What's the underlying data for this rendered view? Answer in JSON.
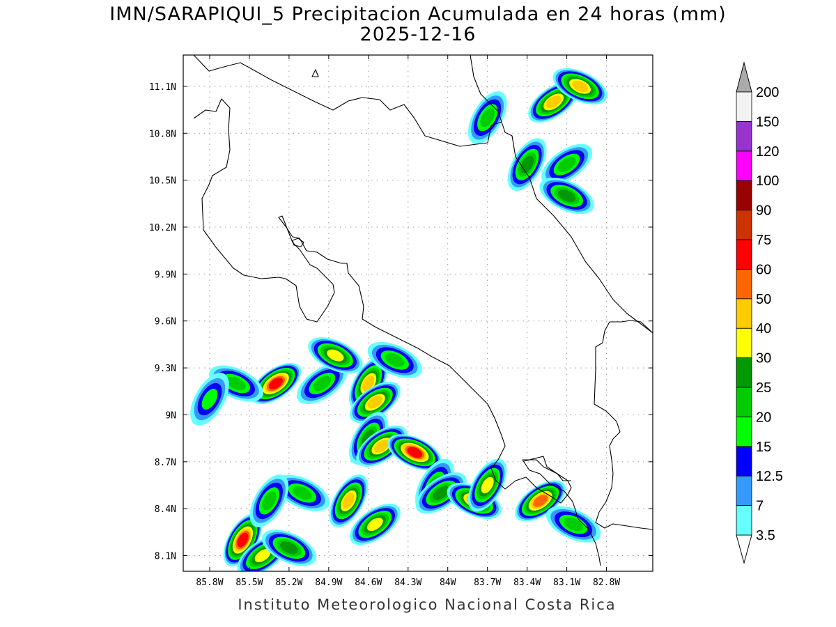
{
  "title": "IMN/SARAPIQUI_5 Precipitacion Acumulada en 24 horas (mm)",
  "date": "2025-12-16",
  "credit": "Instituto Meteorologico Nacional Costa Rica",
  "map": {
    "lon_range": [
      -86.0,
      -82.45
    ],
    "lat_range": [
      8.0,
      11.3
    ],
    "lon_ticks": [
      {
        "value": -85.8,
        "label": "85.8W"
      },
      {
        "value": -85.5,
        "label": "85.5W"
      },
      {
        "value": -85.2,
        "label": "85.2W"
      },
      {
        "value": -84.9,
        "label": "84.9W"
      },
      {
        "value": -84.6,
        "label": "84.6W"
      },
      {
        "value": -84.3,
        "label": "84.3W"
      },
      {
        "value": -84.0,
        "label": "84W"
      },
      {
        "value": -83.7,
        "label": "83.7W"
      },
      {
        "value": -83.4,
        "label": "83.4W"
      },
      {
        "value": -83.1,
        "label": "83.1W"
      },
      {
        "value": -82.8,
        "label": "82.8W"
      }
    ],
    "lat_ticks": [
      {
        "value": 8.1,
        "label": "8.1N"
      },
      {
        "value": 8.4,
        "label": "8.4N"
      },
      {
        "value": 8.7,
        "label": "8.7N"
      },
      {
        "value": 9.0,
        "label": "9N"
      },
      {
        "value": 9.3,
        "label": "9.3N"
      },
      {
        "value": 9.6,
        "label": "9.6N"
      },
      {
        "value": 9.9,
        "label": "9.9N"
      },
      {
        "value": 10.2,
        "label": "10.2N"
      },
      {
        "value": 10.5,
        "label": "10.5N"
      },
      {
        "value": 10.8,
        "label": "10.8N"
      },
      {
        "value": 11.1,
        "label": "11.1N"
      }
    ],
    "grid": true
  },
  "colorbar": {
    "levels": [
      {
        "label": "3.5",
        "color": "#66ffff"
      },
      {
        "label": "7",
        "color": "#3399ff"
      },
      {
        "label": "12.5",
        "color": "#0000ff"
      },
      {
        "label": "15",
        "color": "#00ff00"
      },
      {
        "label": "20",
        "color": "#00cc00"
      },
      {
        "label": "25",
        "color": "#009900"
      },
      {
        "label": "30",
        "color": "#ffff00"
      },
      {
        "label": "40",
        "color": "#ffcc00"
      },
      {
        "label": "50",
        "color": "#ff6600"
      },
      {
        "label": "60",
        "color": "#ff0000"
      },
      {
        "label": "75",
        "color": "#cc3300"
      },
      {
        "label": "90",
        "color": "#990000"
      },
      {
        "label": "100",
        "color": "#ff00ff"
      },
      {
        "label": "120",
        "color": "#9933cc"
      },
      {
        "label": "150",
        "color": "#f2f2f2"
      },
      {
        "label": "200",
        "color": "#aaaaaa"
      }
    ],
    "under_color": "#ffffff",
    "over_color": "#aaaaaa"
  },
  "rain_cells": [
    {
      "lon": -83.2,
      "lat": 11.0,
      "max_mm": 40
    },
    {
      "lon": -83.0,
      "lat": 11.1,
      "max_mm": 40
    },
    {
      "lon": -83.4,
      "lat": 10.6,
      "max_mm": 25
    },
    {
      "lon": -83.1,
      "lat": 10.6,
      "max_mm": 20
    },
    {
      "lon": -83.1,
      "lat": 10.4,
      "max_mm": 25
    },
    {
      "lon": -83.7,
      "lat": 10.9,
      "max_mm": 20
    },
    {
      "lon": -85.3,
      "lat": 9.2,
      "max_mm": 60
    },
    {
      "lon": -85.6,
      "lat": 9.2,
      "max_mm": 20
    },
    {
      "lon": -85.8,
      "lat": 9.1,
      "max_mm": 15
    },
    {
      "lon": -84.95,
      "lat": 9.2,
      "max_mm": 20
    },
    {
      "lon": -84.85,
      "lat": 9.38,
      "max_mm": 30
    },
    {
      "lon": -84.6,
      "lat": 9.2,
      "max_mm": 40
    },
    {
      "lon": -84.55,
      "lat": 9.08,
      "max_mm": 40
    },
    {
      "lon": -84.4,
      "lat": 9.35,
      "max_mm": 20
    },
    {
      "lon": -84.6,
      "lat": 8.85,
      "max_mm": 25
    },
    {
      "lon": -84.5,
      "lat": 8.8,
      "max_mm": 40
    },
    {
      "lon": -84.25,
      "lat": 8.76,
      "max_mm": 60
    },
    {
      "lon": -84.1,
      "lat": 8.55,
      "max_mm": 20
    },
    {
      "lon": -84.05,
      "lat": 8.5,
      "max_mm": 25
    },
    {
      "lon": -83.8,
      "lat": 8.45,
      "max_mm": 40
    },
    {
      "lon": -83.7,
      "lat": 8.55,
      "max_mm": 30
    },
    {
      "lon": -83.3,
      "lat": 8.45,
      "max_mm": 50
    },
    {
      "lon": -83.05,
      "lat": 8.3,
      "max_mm": 20
    },
    {
      "lon": -85.55,
      "lat": 8.2,
      "max_mm": 60
    },
    {
      "lon": -85.4,
      "lat": 8.1,
      "max_mm": 30
    },
    {
      "lon": -85.2,
      "lat": 8.15,
      "max_mm": 25
    },
    {
      "lon": -84.75,
      "lat": 8.45,
      "max_mm": 40
    },
    {
      "lon": -84.55,
      "lat": 8.3,
      "max_mm": 30
    },
    {
      "lon": -85.1,
      "lat": 8.5,
      "max_mm": 20
    },
    {
      "lon": -85.35,
      "lat": 8.45,
      "max_mm": 20
    }
  ]
}
